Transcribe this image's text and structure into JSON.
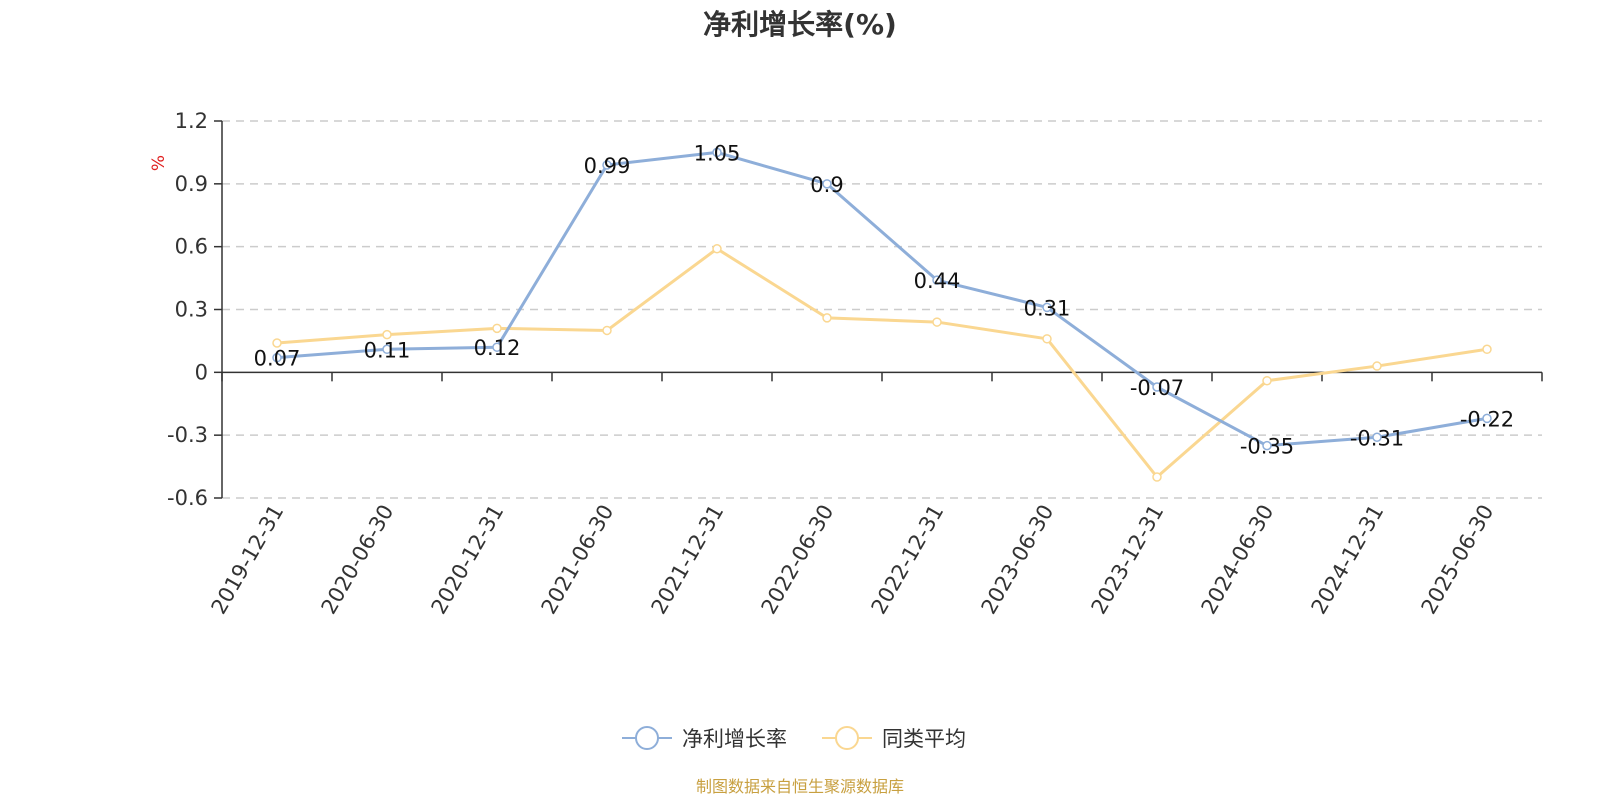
{
  "title": "净利增长率(%)",
  "source": "制图数据来自恒生聚源数据库",
  "colors": {
    "primary": "#8eaed9",
    "average": "#fad791",
    "grid": "#cccccc",
    "axis": "#333333",
    "unit": "#e02020",
    "source": "#c8a040"
  },
  "chart_data": {
    "type": "line",
    "title": "净利增长率(%)",
    "xlabel": "",
    "ylabel": "%",
    "ylim": [
      -0.6,
      1.2
    ],
    "yticks": [
      "1.2",
      "0.9",
      "0.6",
      "0.3",
      "0",
      "-0.3",
      "-0.6"
    ],
    "ytick_values": [
      1.2,
      0.9,
      0.6,
      0.3,
      0,
      -0.3,
      -0.6
    ],
    "grid": true,
    "legend_position": "bottom-center",
    "categories": [
      "2019-12-31",
      "2020-06-30",
      "2020-12-31",
      "2021-06-30",
      "2021-12-31",
      "2022-06-30",
      "2022-12-31",
      "2023-06-30",
      "2023-12-31",
      "2024-06-30",
      "2024-12-31",
      "2025-06-30"
    ],
    "series": [
      {
        "name": "净利增长率",
        "values": [
          0.07,
          0.11,
          0.12,
          0.99,
          1.05,
          0.9,
          0.44,
          0.31,
          -0.07,
          -0.35,
          -0.31,
          -0.22
        ],
        "labels": [
          "0.07",
          "0.11",
          "0.12",
          "0.99",
          "1.05",
          "0.9",
          "0.44",
          "0.31",
          "-0.07",
          "-0.35",
          "-0.31",
          "-0.22"
        ]
      },
      {
        "name": "同类平均",
        "values": [
          0.14,
          0.18,
          0.21,
          0.2,
          0.59,
          0.26,
          0.24,
          0.16,
          -0.5,
          -0.04,
          0.03,
          0.11
        ]
      }
    ]
  }
}
